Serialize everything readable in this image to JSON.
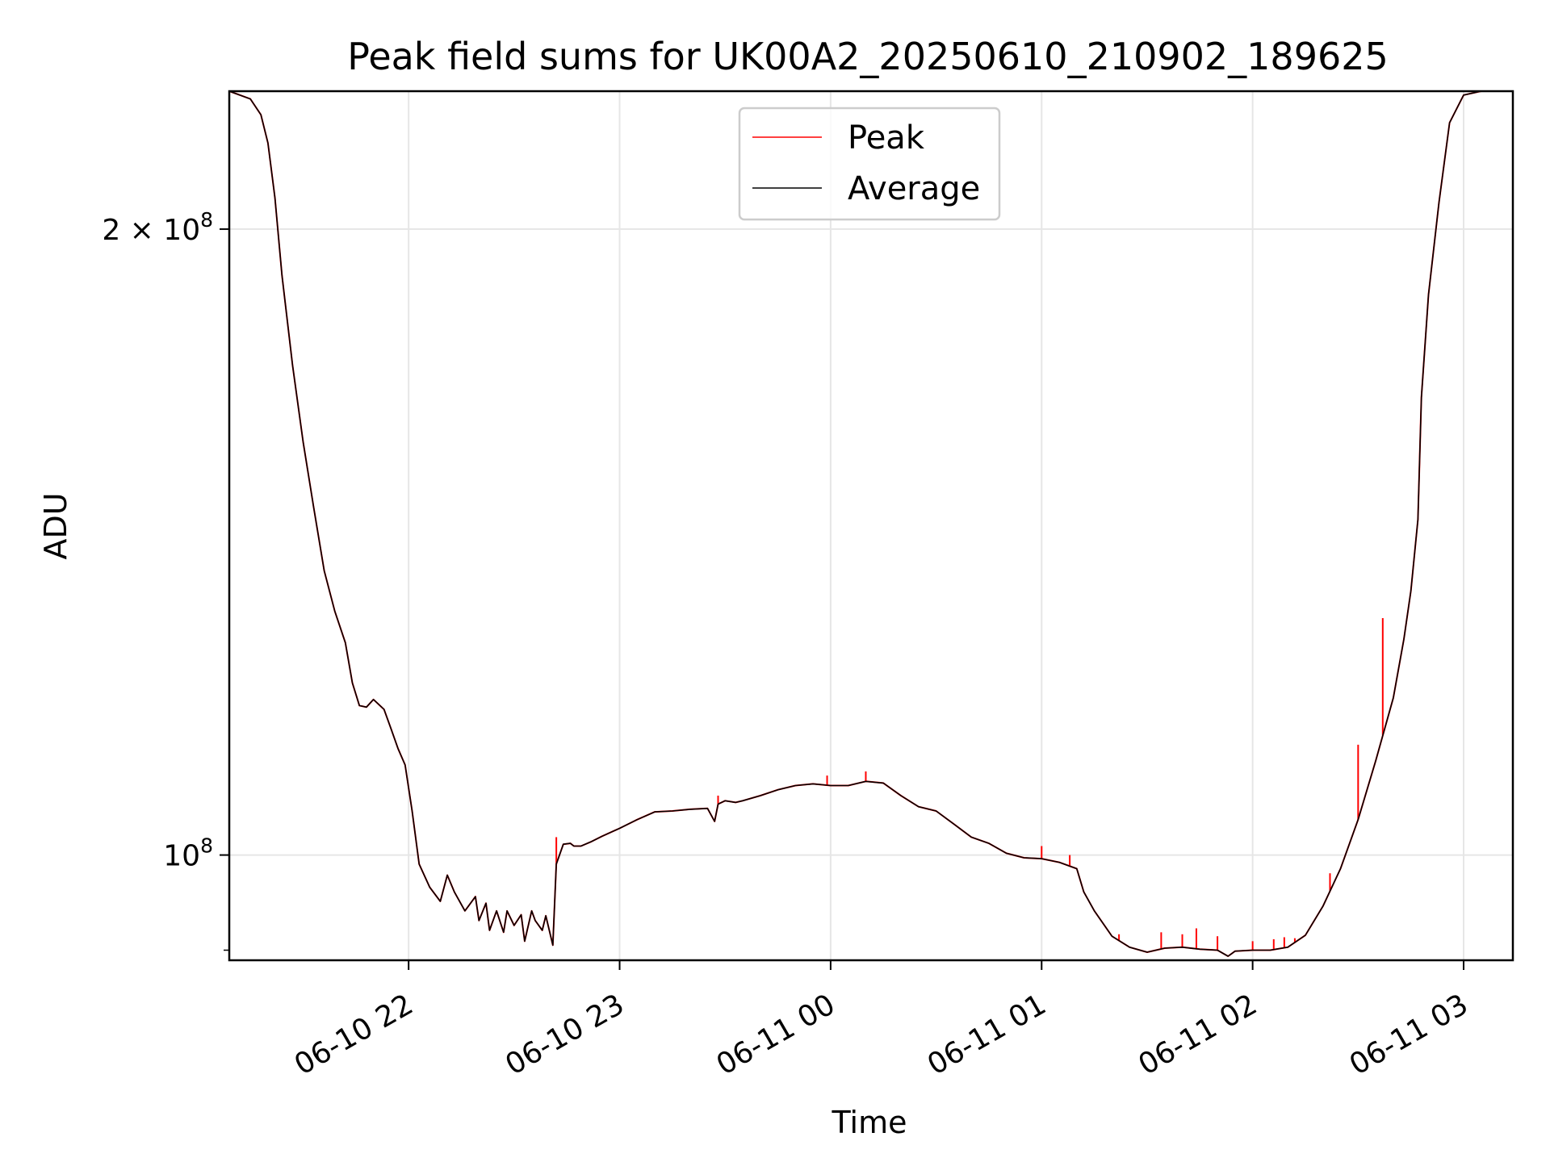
{
  "chart_data": {
    "type": "line",
    "title": "Peak field sums for UK00A2_20250610_210902_189625",
    "xlabel": "Time",
    "ylabel": "ADU",
    "y_scale": "log",
    "xlim": [
      "2025-06-10 21:09",
      "2025-06-11 03:14"
    ],
    "ylim": [
      89000000,
      233000000
    ],
    "x_ticks": [
      {
        "value": "2025-06-10 22:00",
        "label": "06-10 22"
      },
      {
        "value": "2025-06-10 23:00",
        "label": "06-10 23"
      },
      {
        "value": "2025-06-11 00:00",
        "label": "06-11 00"
      },
      {
        "value": "2025-06-11 01:00",
        "label": "06-11 01"
      },
      {
        "value": "2025-06-11 02:00",
        "label": "06-11 02"
      },
      {
        "value": "2025-06-11 03:00",
        "label": "06-11 03"
      }
    ],
    "y_ticks": [
      {
        "value": 100000000,
        "base": "10",
        "exp": "8",
        "mult": ""
      },
      {
        "value": 200000000,
        "base": "10",
        "exp": "8",
        "mult": "2 × "
      }
    ],
    "grid": true,
    "legend": {
      "placement": "upper-center"
    },
    "series": [
      {
        "name": "Peak",
        "color": "#ff0000"
      },
      {
        "name": "Average",
        "color": "#000000"
      }
    ],
    "x": [
      "2025-06-10 21:09",
      "2025-06-10 21:15",
      "2025-06-10 21:18",
      "2025-06-10 21:20",
      "2025-06-10 21:22",
      "2025-06-10 21:24",
      "2025-06-10 21:27",
      "2025-06-10 21:30",
      "2025-06-10 21:33",
      "2025-06-10 21:36",
      "2025-06-10 21:39",
      "2025-06-10 21:42",
      "2025-06-10 21:44",
      "2025-06-10 21:46",
      "2025-06-10 21:48",
      "2025-06-10 21:50",
      "2025-06-10 21:53",
      "2025-06-10 21:55",
      "2025-06-10 21:57",
      "2025-06-10 21:59",
      "2025-06-10 22:01",
      "2025-06-10 22:03",
      "2025-06-10 22:06",
      "2025-06-10 22:09",
      "2025-06-10 22:11",
      "2025-06-10 22:13",
      "2025-06-10 22:16",
      "2025-06-10 22:19",
      "2025-06-10 22:20",
      "2025-06-10 22:22",
      "2025-06-10 22:23",
      "2025-06-10 22:25",
      "2025-06-10 22:27",
      "2025-06-10 22:28",
      "2025-06-10 22:30",
      "2025-06-10 22:32",
      "2025-06-10 22:33",
      "2025-06-10 22:35",
      "2025-06-10 22:36",
      "2025-06-10 22:38",
      "2025-06-10 22:39",
      "2025-06-10 22:41",
      "2025-06-10 22:42",
      "2025-06-10 22:44",
      "2025-06-10 22:46",
      "2025-06-10 22:47",
      "2025-06-10 22:49",
      "2025-06-10 22:52",
      "2025-06-10 22:55",
      "2025-06-10 23:00",
      "2025-06-10 23:05",
      "2025-06-10 23:10",
      "2025-06-10 23:15",
      "2025-06-10 23:20",
      "2025-06-10 23:25",
      "2025-06-10 23:27",
      "2025-06-10 23:28",
      "2025-06-10 23:30",
      "2025-06-10 23:33",
      "2025-06-10 23:35",
      "2025-06-10 23:40",
      "2025-06-10 23:45",
      "2025-06-10 23:50",
      "2025-06-10 23:55",
      "2025-06-11 00:00",
      "2025-06-11 00:05",
      "2025-06-11 00:10",
      "2025-06-11 00:15",
      "2025-06-11 00:20",
      "2025-06-11 00:25",
      "2025-06-11 00:30",
      "2025-06-11 00:35",
      "2025-06-11 00:40",
      "2025-06-11 00:45",
      "2025-06-11 00:50",
      "2025-06-11 00:55",
      "2025-06-11 01:00",
      "2025-06-11 01:05",
      "2025-06-11 01:10",
      "2025-06-11 01:12",
      "2025-06-11 01:15",
      "2025-06-11 01:20",
      "2025-06-11 01:25",
      "2025-06-11 01:30",
      "2025-06-11 01:35",
      "2025-06-11 01:40",
      "2025-06-11 01:45",
      "2025-06-11 01:50",
      "2025-06-11 01:53",
      "2025-06-11 01:55",
      "2025-06-11 02:00",
      "2025-06-11 02:05",
      "2025-06-11 02:10",
      "2025-06-11 02:15",
      "2025-06-11 02:20",
      "2025-06-11 02:25",
      "2025-06-11 02:30",
      "2025-06-11 02:35",
      "2025-06-11 02:40",
      "2025-06-11 02:43",
      "2025-06-11 02:45",
      "2025-06-11 02:47",
      "2025-06-11 02:48",
      "2025-06-11 02:50",
      "2025-06-11 02:53",
      "2025-06-11 02:56",
      "2025-06-11 03:00",
      "2025-06-11 03:05",
      "2025-06-11 03:09"
    ],
    "average": [
      233000000,
      231000000,
      227000000,
      220000000,
      207000000,
      190000000,
      172000000,
      158000000,
      147000000,
      137000000,
      131000000,
      126500000,
      121000000,
      118000000,
      117800000,
      118800000,
      117500000,
      115000000,
      112500000,
      110500000,
      105000000,
      99000000,
      96500000,
      95000000,
      97800000,
      96000000,
      94000000,
      95500000,
      93000000,
      94800000,
      92000000,
      94000000,
      91800000,
      94000000,
      92500000,
      93600000,
      90900000,
      94000000,
      93000000,
      92000000,
      93500000,
      90500000,
      99000000,
      101200000,
      101300000,
      101000000,
      101000000,
      101500000,
      102100000,
      103000000,
      104000000,
      104900000,
      105000000,
      105200000,
      105300000,
      103800000,
      105800000,
      106200000,
      106000000,
      106200000,
      106800000,
      107500000,
      108000000,
      108200000,
      108000000,
      108000000,
      108500000,
      108300000,
      106800000,
      105500000,
      105000000,
      103500000,
      102000000,
      101300000,
      100200000,
      99700000,
      99600000,
      99200000,
      98500000,
      96000000,
      94000000,
      91400000,
      90300000,
      89800000,
      90200000,
      90300000,
      90100000,
      90000000,
      89400000,
      89900000,
      90000000,
      90000000,
      90300000,
      91500000,
      94500000,
      98500000,
      104000000,
      111000000,
      119000000,
      127000000,
      134000000,
      145000000,
      166000000,
      186000000,
      206000000,
      225000000,
      232000000,
      233000000,
      233000000
    ],
    "peak_spikes": [
      {
        "x": "2025-06-10 22:42",
        "y": 102000000
      },
      {
        "x": "2025-06-10 23:28",
        "y": 106800000
      },
      {
        "x": "2025-06-10 23:59",
        "y": 109200000
      },
      {
        "x": "2025-06-11 00:10",
        "y": 109700000
      },
      {
        "x": "2025-06-11 01:00",
        "y": 101000000
      },
      {
        "x": "2025-06-11 01:08",
        "y": 100000000
      },
      {
        "x": "2025-06-11 01:22",
        "y": 91600000
      },
      {
        "x": "2025-06-11 01:34",
        "y": 91800000
      },
      {
        "x": "2025-06-11 01:40",
        "y": 91600000
      },
      {
        "x": "2025-06-11 01:44",
        "y": 92200000
      },
      {
        "x": "2025-06-11 01:50",
        "y": 91400000
      },
      {
        "x": "2025-06-11 02:00",
        "y": 90900000
      },
      {
        "x": "2025-06-11 02:06",
        "y": 91100000
      },
      {
        "x": "2025-06-11 02:09",
        "y": 91300000
      },
      {
        "x": "2025-06-11 02:12",
        "y": 91200000
      },
      {
        "x": "2025-06-11 02:22",
        "y": 98000000
      },
      {
        "x": "2025-06-11 02:30",
        "y": 113000000
      },
      {
        "x": "2025-06-11 02:37",
        "y": 130000000
      }
    ]
  }
}
